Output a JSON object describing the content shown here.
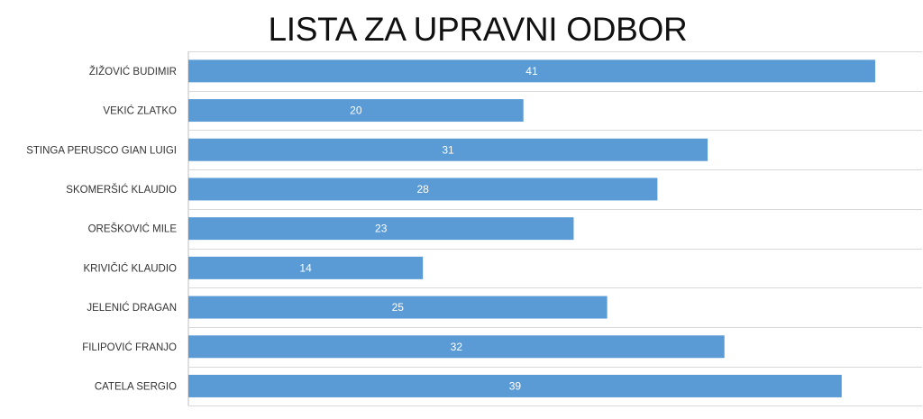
{
  "chart_data": {
    "type": "bar",
    "orientation": "horizontal",
    "title": "LISTA ZA UPRAVNI ODBOR",
    "xlabel": "",
    "ylabel": "",
    "categories": [
      "ŽIŽOVIĆ BUDIMIR",
      "VEKIĆ ZLATKO",
      "STINGA PERUSCO GIAN LUIGI",
      "SKOMERŠIĆ KLAUDIO",
      "OREŠKOVIĆ MILE",
      "KRIVIČIĆ KLAUDIO",
      "JELENIĆ DRAGAN",
      "FILIPOVIĆ FRANJO",
      "CATELA SERGIO"
    ],
    "values": [
      41,
      20,
      31,
      28,
      23,
      14,
      25,
      32,
      39
    ],
    "xlim": [
      0,
      43.8
    ],
    "data_labels": true,
    "grid": "horizontal category separators",
    "legend": "none",
    "colors": {
      "bar": "#5b9bd5",
      "label_text": "#ffffff",
      "grid": "#d9d9d9"
    }
  }
}
